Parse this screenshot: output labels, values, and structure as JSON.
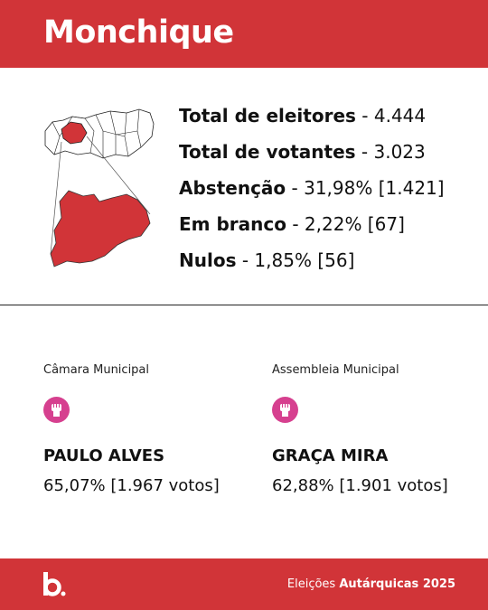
{
  "header": {
    "title": "Monchique"
  },
  "stats": [
    {
      "label": "Total de eleitores",
      "value": "- 4.444"
    },
    {
      "label": "Total de votantes",
      "value": "- 3.023"
    },
    {
      "label": "Abstenção",
      "value": "- 31,98% [1.421]"
    },
    {
      "label": "Em branco",
      "value": "- 2,22% [67]"
    },
    {
      "label": "Nulos",
      "value": "- 1,85% [56]"
    }
  ],
  "results": [
    {
      "organ": "Câmara Municipal",
      "candidate": "PAULO ALVES",
      "result": "65,07% [1.967 votos]"
    },
    {
      "organ": "Assembleia Municipal",
      "candidate": "GRAÇA MIRA",
      "result": "62,88% [1.901 votos]"
    }
  ],
  "footer": {
    "prefix": "Eleições",
    "emphasis": "Autárquicas 2025"
  }
}
